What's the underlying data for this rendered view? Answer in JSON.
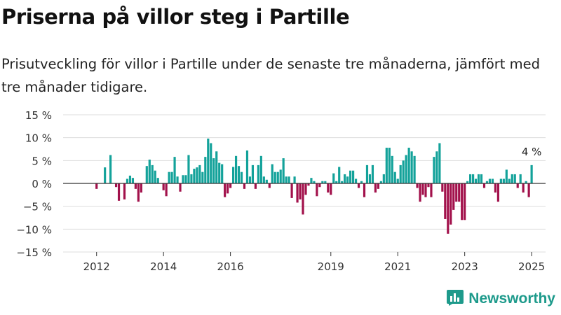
{
  "header": {
    "title": "Priserna på villor steg i Partille",
    "subtitle": "Prisutveckling för villor i Partille under de senaste tre månaderna, jämfört med tre månader tidigare."
  },
  "brand": {
    "name": "Newsworthy",
    "color": "#1d9a8b",
    "icon": "bar-chart-logo-icon"
  },
  "chart_data": {
    "type": "bar",
    "title": "",
    "xlabel": "",
    "ylabel": "",
    "unit": "%",
    "colors": {
      "positive": "#13a29a",
      "negative": "#a2114b",
      "gridline": "#dddddd",
      "zeroline": "#333333"
    },
    "grid": true,
    "ylim": [
      -15,
      15
    ],
    "y_ticks": [
      {
        "value": 15,
        "label": "15 %"
      },
      {
        "value": 10,
        "label": "10 %"
      },
      {
        "value": 5,
        "label": "5 %"
      },
      {
        "value": 0,
        "label": "0 %"
      },
      {
        "value": -5,
        "label": "−5 %"
      },
      {
        "value": -10,
        "label": "−10 %"
      },
      {
        "value": -15,
        "label": "−15 %"
      }
    ],
    "xlim": [
      "2011-01",
      "2025-06"
    ],
    "x_ticks": [
      {
        "date": "2012-01",
        "label": "2012"
      },
      {
        "date": "2014-01",
        "label": "2014"
      },
      {
        "date": "2016-01",
        "label": "2016"
      },
      {
        "date": "2019-01",
        "label": "2019"
      },
      {
        "date": "2021-01",
        "label": "2021"
      },
      {
        "date": "2023-01",
        "label": "2023"
      },
      {
        "date": "2025-01",
        "label": "2025"
      }
    ],
    "annotation": {
      "date": "2025-01",
      "value": 4,
      "label": "4 %"
    },
    "series": [
      {
        "data": [
          [
            "2012-01",
            -1.2
          ],
          [
            "2012-04",
            3.5
          ],
          [
            "2012-06",
            6.2
          ],
          [
            "2012-08",
            -0.8
          ],
          [
            "2012-09",
            -3.8
          ],
          [
            "2012-11",
            -3.5
          ],
          [
            "2012-12",
            1.0
          ],
          [
            "2013-01",
            1.7
          ],
          [
            "2013-02",
            1.2
          ],
          [
            "2013-03",
            -1.2
          ],
          [
            "2013-04",
            -4.0
          ],
          [
            "2013-05",
            -2.0
          ],
          [
            "2013-07",
            3.8
          ],
          [
            "2013-08",
            5.2
          ],
          [
            "2013-09",
            4.0
          ],
          [
            "2013-10",
            2.8
          ],
          [
            "2013-11",
            1.2
          ],
          [
            "2014-01",
            -1.5
          ],
          [
            "2014-02",
            -2.8
          ],
          [
            "2014-03",
            2.5
          ],
          [
            "2014-04",
            2.5
          ],
          [
            "2014-05",
            5.8
          ],
          [
            "2014-06",
            1.5
          ],
          [
            "2014-07",
            -1.8
          ],
          [
            "2014-08",
            1.8
          ],
          [
            "2014-09",
            1.8
          ],
          [
            "2014-10",
            6.2
          ],
          [
            "2014-11",
            2.0
          ],
          [
            "2014-12",
            3.2
          ],
          [
            "2015-01",
            3.5
          ],
          [
            "2015-02",
            4.0
          ],
          [
            "2015-03",
            2.5
          ],
          [
            "2015-04",
            5.8
          ],
          [
            "2015-05",
            9.8
          ],
          [
            "2015-06",
            8.8
          ],
          [
            "2015-07",
            5.5
          ],
          [
            "2015-08",
            7.0
          ],
          [
            "2015-09",
            4.5
          ],
          [
            "2015-10",
            4.2
          ],
          [
            "2015-11",
            -3.0
          ],
          [
            "2015-12",
            -2.2
          ],
          [
            "2016-01",
            -1.0
          ],
          [
            "2016-02",
            3.6
          ],
          [
            "2016-03",
            6.0
          ],
          [
            "2016-04",
            3.8
          ],
          [
            "2016-05",
            2.5
          ],
          [
            "2016-06",
            -1.2
          ],
          [
            "2016-07",
            7.2
          ],
          [
            "2016-08",
            1.5
          ],
          [
            "2016-09",
            4.0
          ],
          [
            "2016-10",
            -1.2
          ],
          [
            "2016-11",
            4.0
          ],
          [
            "2016-12",
            6.0
          ],
          [
            "2017-01",
            1.5
          ],
          [
            "2017-02",
            0.8
          ],
          [
            "2017-03",
            -1.0
          ],
          [
            "2017-04",
            4.2
          ],
          [
            "2017-05",
            2.5
          ],
          [
            "2017-06",
            2.5
          ],
          [
            "2017-07",
            3.0
          ],
          [
            "2017-08",
            5.5
          ],
          [
            "2017-09",
            1.5
          ],
          [
            "2017-10",
            1.5
          ],
          [
            "2017-11",
            -3.2
          ],
          [
            "2017-12",
            1.5
          ],
          [
            "2018-01",
            -4.2
          ],
          [
            "2018-02",
            -3.5
          ],
          [
            "2018-03",
            -6.8
          ],
          [
            "2018-04",
            -2.5
          ],
          [
            "2018-05",
            -0.5
          ],
          [
            "2018-06",
            1.2
          ],
          [
            "2018-07",
            0.5
          ],
          [
            "2018-08",
            -2.8
          ],
          [
            "2018-09",
            -0.8
          ],
          [
            "2018-10",
            0.5
          ],
          [
            "2018-11",
            0.5
          ],
          [
            "2018-12",
            -2.0
          ],
          [
            "2019-01",
            -2.5
          ],
          [
            "2019-02",
            2.2
          ],
          [
            "2019-03",
            0.5
          ],
          [
            "2019-04",
            3.6
          ],
          [
            "2019-05",
            0.5
          ],
          [
            "2019-06",
            2.0
          ],
          [
            "2019-07",
            1.5
          ],
          [
            "2019-08",
            2.8
          ],
          [
            "2019-09",
            2.8
          ],
          [
            "2019-10",
            1.0
          ],
          [
            "2019-11",
            -1.0
          ],
          [
            "2019-12",
            0.5
          ],
          [
            "2020-01",
            -3.0
          ],
          [
            "2020-02",
            4.0
          ],
          [
            "2020-03",
            2.0
          ],
          [
            "2020-04",
            4.0
          ],
          [
            "2020-05",
            -2.0
          ],
          [
            "2020-06",
            -1.2
          ],
          [
            "2020-07",
            0.5
          ],
          [
            "2020-08",
            2.0
          ],
          [
            "2020-09",
            7.8
          ],
          [
            "2020-10",
            7.8
          ],
          [
            "2020-11",
            6.0
          ],
          [
            "2020-12",
            2.5
          ],
          [
            "2021-01",
            1.0
          ],
          [
            "2021-02",
            4.0
          ],
          [
            "2021-03",
            5.0
          ],
          [
            "2021-04",
            6.2
          ],
          [
            "2021-05",
            7.8
          ],
          [
            "2021-06",
            7.0
          ],
          [
            "2021-07",
            6.0
          ],
          [
            "2021-08",
            -1.0
          ],
          [
            "2021-09",
            -4.0
          ],
          [
            "2021-10",
            -2.5
          ],
          [
            "2021-11",
            -3.0
          ],
          [
            "2021-12",
            -0.8
          ],
          [
            "2022-01",
            -3.0
          ],
          [
            "2022-02",
            5.8
          ],
          [
            "2022-03",
            7.0
          ],
          [
            "2022-04",
            8.8
          ],
          [
            "2022-05",
            -1.8
          ],
          [
            "2022-06",
            -7.8
          ],
          [
            "2022-07",
            -11.0
          ],
          [
            "2022-08",
            -9.0
          ],
          [
            "2022-09",
            -5.8
          ],
          [
            "2022-10",
            -4.0
          ],
          [
            "2022-11",
            -4.0
          ],
          [
            "2022-12",
            -8.0
          ],
          [
            "2023-01",
            -8.0
          ],
          [
            "2023-02",
            0.5
          ],
          [
            "2023-03",
            2.0
          ],
          [
            "2023-04",
            2.0
          ],
          [
            "2023-05",
            1.0
          ],
          [
            "2023-06",
            2.0
          ],
          [
            "2023-07",
            2.0
          ],
          [
            "2023-08",
            -1.0
          ],
          [
            "2023-09",
            0.5
          ],
          [
            "2023-10",
            1.0
          ],
          [
            "2023-11",
            1.0
          ],
          [
            "2023-12",
            -2.0
          ],
          [
            "2024-01",
            -4.0
          ],
          [
            "2024-02",
            1.0
          ],
          [
            "2024-03",
            1.0
          ],
          [
            "2024-04",
            3.0
          ],
          [
            "2024-05",
            1.0
          ],
          [
            "2024-06",
            2.0
          ],
          [
            "2024-07",
            2.0
          ],
          [
            "2024-08",
            -1.0
          ],
          [
            "2024-09",
            2.0
          ],
          [
            "2024-10",
            -2.0
          ],
          [
            "2024-11",
            0.5
          ],
          [
            "2024-12",
            -3.0
          ],
          [
            "2025-01",
            4.0
          ]
        ]
      }
    ]
  }
}
